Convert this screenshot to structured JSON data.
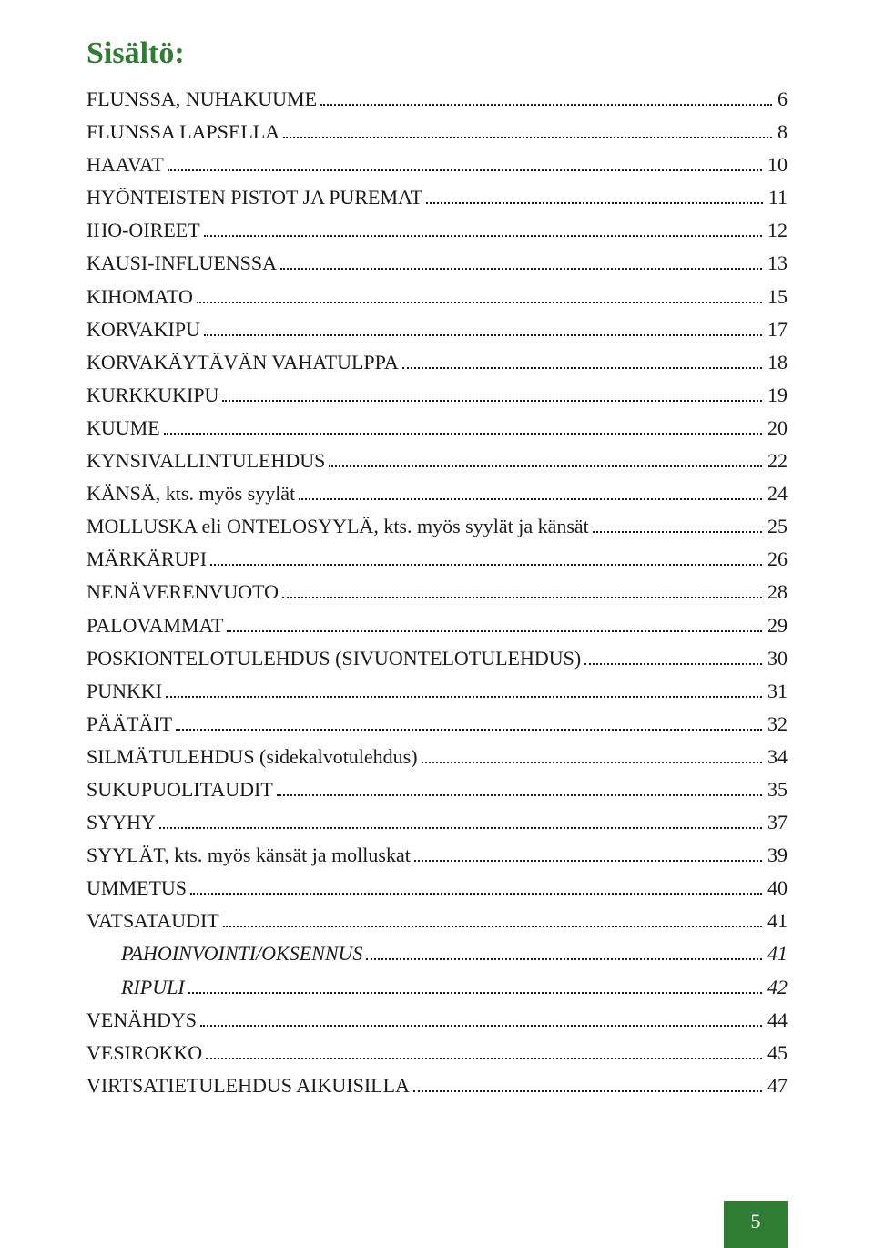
{
  "title": "Sisältö:",
  "title_color": "#2e7d32",
  "text_color": "#1a1a1a",
  "dot_color": "#1a1a1a",
  "footer": {
    "page": "5",
    "bg": "#2e7d32"
  },
  "toc": [
    {
      "label": "FLUNSSA, NUHAKUUME",
      "page": "6",
      "indent": false,
      "italic": false
    },
    {
      "label": "FLUNSSA LAPSELLA",
      "page": "8",
      "indent": false,
      "italic": false
    },
    {
      "label": "HAAVAT",
      "page": "10",
      "indent": false,
      "italic": false
    },
    {
      "label": "HYÖNTEISTEN PISTOT JA PUREMAT",
      "page": " 11",
      "indent": false,
      "italic": false
    },
    {
      "label": "IHO-OIREET",
      "page": "12",
      "indent": false,
      "italic": false
    },
    {
      "label": "KAUSI-INFLUENSSA",
      "page": "13",
      "indent": false,
      "italic": false
    },
    {
      "label": "KIHOMATO",
      "page": "15",
      "indent": false,
      "italic": false
    },
    {
      "label": "KORVAKIPU",
      "page": "17",
      "indent": false,
      "italic": false
    },
    {
      "label": "KORVAKÄYTÄVÄN VAHATULPPA",
      "page": "18",
      "indent": false,
      "italic": false
    },
    {
      "label": "KURKKUKIPU",
      "page": "19",
      "indent": false,
      "italic": false
    },
    {
      "label": "KUUME",
      "page": "20",
      "indent": false,
      "italic": false
    },
    {
      "label": "KYNSIVALLINTULEHDUS",
      "page": "22",
      "indent": false,
      "italic": false
    },
    {
      "label": "KÄNSÄ, kts. myös syylät",
      "page": "24",
      "indent": false,
      "italic": false
    },
    {
      "label": "MOLLUSKA eli ONTELOSYYLÄ, kts. myös syylät ja känsät",
      "page": "25",
      "indent": false,
      "italic": false
    },
    {
      "label": "MÄRKÄRUPI",
      "page": "26",
      "indent": false,
      "italic": false
    },
    {
      "label": "NENÄVERENVUOTO",
      "page": "28",
      "indent": false,
      "italic": false
    },
    {
      "label": "PALOVAMMAT",
      "page": "29",
      "indent": false,
      "italic": false
    },
    {
      "label": "POSKIONTELOTULEHDUS (SIVUONTELOTULEHDUS)",
      "page": " 30",
      "indent": false,
      "italic": false
    },
    {
      "label": "PUNKKI",
      "page": "31",
      "indent": false,
      "italic": false
    },
    {
      "label": "PÄÄTÄIT",
      "page": "32",
      "indent": false,
      "italic": false
    },
    {
      "label": "SILMÄTULEHDUS (sidekalvotulehdus)",
      "page": "34",
      "indent": false,
      "italic": false
    },
    {
      "label": "SUKUPUOLITAUDIT",
      "page": "35",
      "indent": false,
      "italic": false
    },
    {
      "label": "SYYHY",
      "page": "37",
      "indent": false,
      "italic": false
    },
    {
      "label": "SYYLÄT, kts. myös känsät ja molluskat",
      "page": "39",
      "indent": false,
      "italic": false
    },
    {
      "label": "UMMETUS",
      "page": "40",
      "indent": false,
      "italic": false
    },
    {
      "label": "VATSATAUDIT",
      "page": "41",
      "indent": false,
      "italic": false
    },
    {
      "label": "PAHOINVOINTI/OKSENNUS",
      "page": " 41",
      "indent": true,
      "italic": true
    },
    {
      "label": "RIPULI",
      "page": " 42",
      "indent": true,
      "italic": true
    },
    {
      "label": "VENÄHDYS",
      "page": "44",
      "indent": false,
      "italic": false
    },
    {
      "label": "VESIROKKO",
      "page": "45",
      "indent": false,
      "italic": false
    },
    {
      "label": "VIRTSATIETULEHDUS AIKUISILLA",
      "page": "47",
      "indent": false,
      "italic": false
    }
  ]
}
